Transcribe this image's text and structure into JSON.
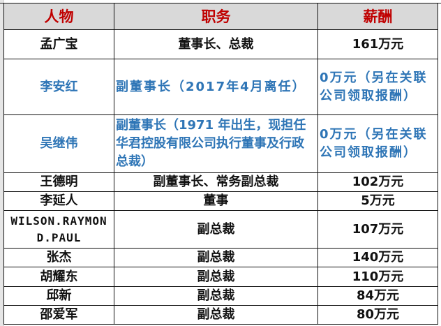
{
  "table": {
    "headers": [
      "人物",
      "职务",
      "薪酬"
    ],
    "rows": [
      {
        "name": "孟广宝",
        "position": "董事长、总裁",
        "salary": "161万元",
        "highlight": false
      },
      {
        "name": "李安红",
        "position": "副董事长（2017年4月离任）",
        "salary": "0万元（另在关联公司领取报酬）",
        "highlight": true
      },
      {
        "name": "吴继伟",
        "position": "副董事长（1971 年出生，现担任华君控股有限公司执行董事及行政总裁）",
        "salary": "0万元（另在关联公司领取报酬）",
        "highlight": true
      },
      {
        "name": "王德明",
        "position": "副董事长、常务副总裁",
        "salary": "102万元",
        "highlight": false
      },
      {
        "name": "李延人",
        "position": "董事",
        "salary": "5万元",
        "highlight": false
      },
      {
        "name": "WILSON.RAYMOND.PAUL",
        "position": "副总裁",
        "salary": "107万元",
        "highlight": false
      },
      {
        "name": "张杰",
        "position": "副总裁",
        "salary": "140万元",
        "highlight": false
      },
      {
        "name": "胡耀东",
        "position": "副总裁",
        "salary": "110万元",
        "highlight": false
      },
      {
        "name": "邱新",
        "position": "副总裁",
        "salary": "84万元",
        "highlight": false
      },
      {
        "name": "邵爱军",
        "position": "副总裁",
        "salary": "80万元",
        "highlight": false
      }
    ]
  },
  "colors": {
    "header_text": "#c00000",
    "header_bg": "#d9d9d9",
    "highlight_text": "#2e75b6"
  }
}
